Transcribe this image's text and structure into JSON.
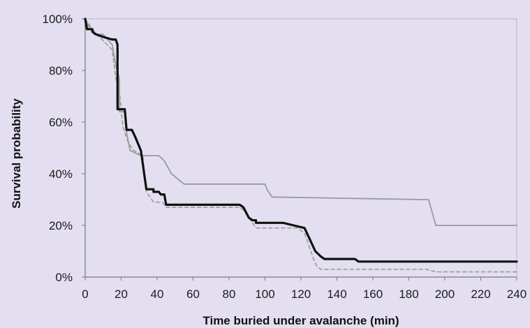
{
  "chart_data": {
    "type": "line",
    "title": "",
    "xlabel": "Time buried under avalanche (min)",
    "ylabel": "Survival probability",
    "xlim": [
      0,
      240
    ],
    "ylim": [
      0,
      100
    ],
    "x_ticks": [
      "0",
      "20",
      "40",
      "60",
      "80",
      "100",
      "120",
      "140",
      "160",
      "180",
      "200",
      "220",
      "240"
    ],
    "y_ticks": [
      "0%",
      "20%",
      "40%",
      "60%",
      "80%",
      "100%"
    ],
    "grid": false,
    "legend": "none",
    "series": [
      {
        "style": "solid-thick",
        "color": "#111111",
        "points": [
          [
            0,
            100
          ],
          [
            1,
            96
          ],
          [
            4,
            96
          ],
          [
            4,
            95
          ],
          [
            6,
            94
          ],
          [
            10,
            93
          ],
          [
            15,
            92
          ],
          [
            17,
            92
          ],
          [
            18,
            90
          ],
          [
            18,
            65
          ],
          [
            22,
            65
          ],
          [
            23,
            57
          ],
          [
            26,
            57
          ],
          [
            28,
            54
          ],
          [
            31,
            49
          ],
          [
            34,
            34
          ],
          [
            38,
            34
          ],
          [
            38,
            33
          ],
          [
            41,
            33
          ],
          [
            42,
            32
          ],
          [
            44,
            32
          ],
          [
            45,
            28
          ],
          [
            86,
            28
          ],
          [
            88,
            27
          ],
          [
            91,
            23
          ],
          [
            93,
            22
          ],
          [
            95,
            22
          ],
          [
            95,
            21
          ],
          [
            110,
            21
          ],
          [
            116,
            20
          ],
          [
            122,
            19
          ],
          [
            124,
            16
          ],
          [
            128,
            10
          ],
          [
            131,
            8
          ],
          [
            133,
            7
          ],
          [
            140,
            7
          ],
          [
            145,
            7
          ],
          [
            150,
            7
          ],
          [
            152,
            6
          ],
          [
            240,
            6
          ]
        ]
      },
      {
        "style": "solid-grey",
        "color": "#9a9a9a",
        "points": [
          [
            0,
            100
          ],
          [
            2,
            97
          ],
          [
            5,
            94
          ],
          [
            10,
            94
          ],
          [
            15,
            90
          ],
          [
            17,
            82
          ],
          [
            19,
            77
          ],
          [
            19,
            64
          ],
          [
            22,
            64
          ],
          [
            23,
            56
          ],
          [
            25,
            49
          ],
          [
            28,
            48
          ],
          [
            31,
            47
          ],
          [
            41,
            47
          ],
          [
            44,
            45
          ],
          [
            48,
            40
          ],
          [
            55,
            36
          ],
          [
            100,
            36
          ],
          [
            101,
            34
          ],
          [
            104,
            31
          ],
          [
            188,
            30
          ],
          [
            191,
            30
          ],
          [
            195,
            20
          ],
          [
            240,
            20
          ]
        ]
      },
      {
        "style": "dashed-grey",
        "color": "#9a9a9a",
        "points": [
          [
            0,
            100
          ],
          [
            4,
            96
          ],
          [
            8,
            93
          ],
          [
            15,
            88
          ],
          [
            17,
            77
          ],
          [
            19,
            72
          ],
          [
            21,
            58
          ],
          [
            24,
            52
          ],
          [
            27,
            49
          ],
          [
            32,
            47
          ],
          [
            34,
            33
          ],
          [
            38,
            29
          ],
          [
            43,
            29
          ],
          [
            45,
            27
          ],
          [
            86,
            27
          ],
          [
            88,
            26
          ],
          [
            92,
            22
          ],
          [
            95,
            19
          ],
          [
            118,
            19
          ],
          [
            122,
            17
          ],
          [
            124,
            13
          ],
          [
            127,
            7
          ],
          [
            129,
            4
          ],
          [
            131,
            3
          ],
          [
            190,
            3
          ],
          [
            195,
            2
          ],
          [
            240,
            2
          ]
        ]
      }
    ]
  }
}
